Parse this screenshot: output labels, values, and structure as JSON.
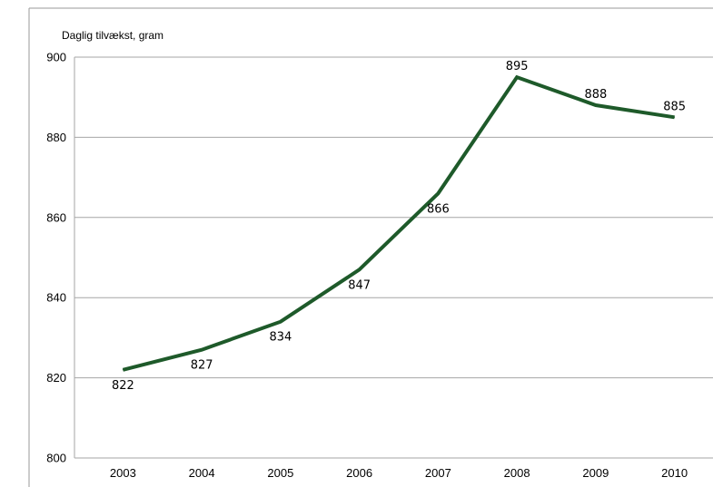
{
  "chart_data": {
    "type": "line",
    "ylabel": "Daglig tilvækst, gram",
    "categories": [
      "2003",
      "2004",
      "2005",
      "2006",
      "2007",
      "2008",
      "2009",
      "2010"
    ],
    "series": [
      {
        "values": [
          822,
          827,
          834,
          847,
          866,
          895,
          888,
          885
        ]
      }
    ],
    "data_labels": [
      "822",
      "827",
      "834",
      "847",
      "866",
      "895",
      "888",
      "885"
    ],
    "yticks": [
      "800",
      "820",
      "840",
      "860",
      "880",
      "900"
    ],
    "ylim": [
      800,
      900
    ],
    "grid": true,
    "line_color": "#1e5a2a",
    "grid_color": "#a6a6a6"
  }
}
